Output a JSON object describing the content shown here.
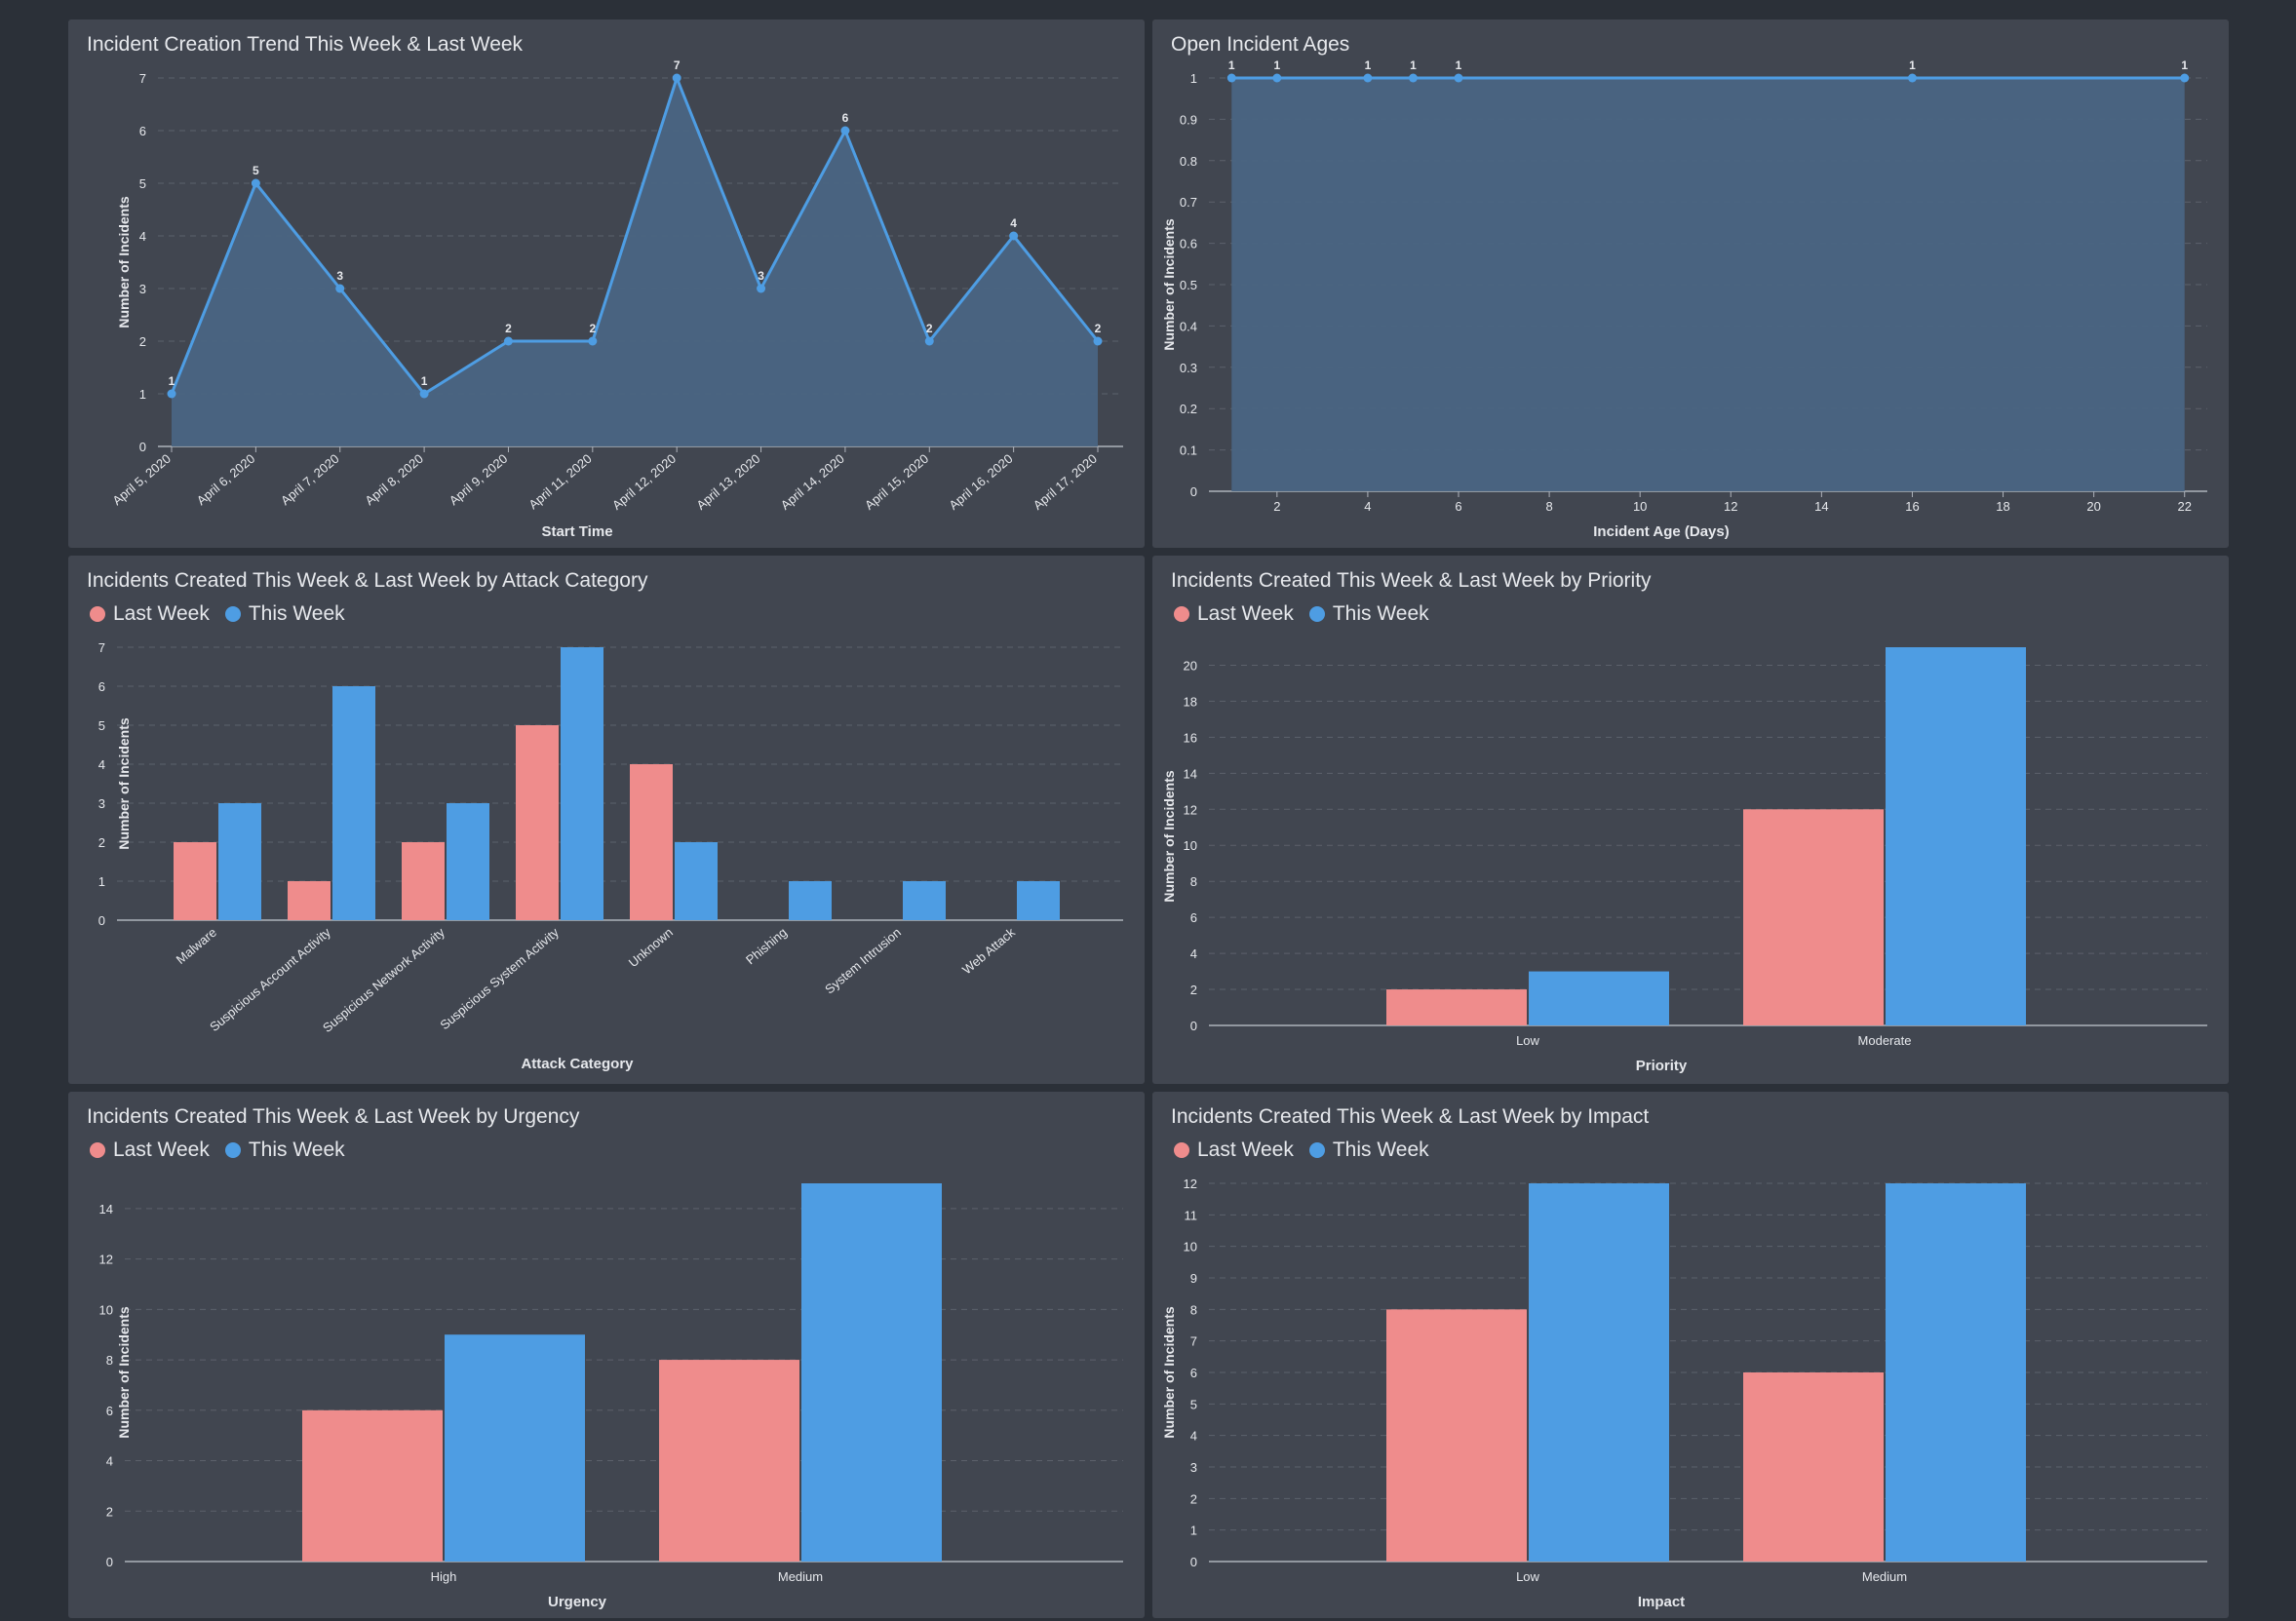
{
  "colors": {
    "last_week": "#ef8c8c",
    "this_week": "#4e9de3",
    "line": "#4e9de3",
    "area": "#4a6583",
    "text": "#e6e8ec",
    "grid": "#5c616b"
  },
  "legend": {
    "last_week": "Last Week",
    "this_week": "This Week"
  },
  "chart_data": [
    {
      "id": "trend",
      "type": "area",
      "title": "Incident Creation Trend This Week & Last Week",
      "xlabel": "Start Time",
      "ylabel": "Number of Incidents",
      "categories": [
        "April 5, 2020",
        "April 6, 2020",
        "April 7, 2020",
        "April 8, 2020",
        "April 9, 2020",
        "April 11, 2020",
        "April 12, 2020",
        "April 13, 2020",
        "April 14, 2020",
        "April 15, 2020",
        "April 16, 2020",
        "April 17, 2020"
      ],
      "values": [
        1,
        5,
        3,
        1,
        2,
        2,
        7,
        3,
        6,
        2,
        4,
        2
      ],
      "yticks": [
        0,
        1,
        2,
        3,
        4,
        5,
        6,
        7
      ],
      "ylim": [
        0,
        7
      ],
      "grid": true,
      "data_labels": true
    },
    {
      "id": "ages",
      "type": "area",
      "title": "Open Incident Ages",
      "xlabel": "Incident Age (Days)",
      "ylabel": "Number of Incidents",
      "x": [
        1,
        2,
        4,
        5,
        6,
        16,
        22
      ],
      "values": [
        1,
        1,
        1,
        1,
        1,
        1,
        1
      ],
      "xticks": [
        2,
        4,
        6,
        8,
        10,
        12,
        14,
        16,
        18,
        20,
        22
      ],
      "xlim": [
        0.5,
        22.5
      ],
      "yticks": [
        0,
        0.1,
        0.2,
        0.3,
        0.4,
        0.5,
        0.6,
        0.7,
        0.8,
        0.9,
        1
      ],
      "ylim": [
        0,
        1
      ],
      "grid": true,
      "data_labels": true
    },
    {
      "id": "attack",
      "type": "bar",
      "title": "Incidents Created This Week & Last Week by Attack Category",
      "xlabel": "Attack Category",
      "ylabel": "Number of Incidents",
      "categories": [
        "Malware",
        "Suspicious Account Activity",
        "Suspicious Network Activity",
        "Suspicious System Activity",
        "Unknown",
        "Phishing",
        "System Intrusion",
        "Web Attack"
      ],
      "series": [
        {
          "name": "Last Week",
          "values": [
            2,
            1,
            2,
            5,
            4,
            0,
            0,
            0
          ]
        },
        {
          "name": "This Week",
          "values": [
            3,
            6,
            3,
            7,
            2,
            1,
            1,
            1
          ]
        }
      ],
      "yticks": [
        0,
        1,
        2,
        3,
        4,
        5,
        6,
        7
      ],
      "ylim": [
        0,
        7
      ],
      "grid": true,
      "legend": "top-left",
      "rotate_labels": true
    },
    {
      "id": "priority",
      "type": "bar",
      "title": "Incidents Created This Week & Last Week by Priority",
      "xlabel": "Priority",
      "ylabel": "Number of Incidents",
      "categories": [
        "Low",
        "Moderate"
      ],
      "series": [
        {
          "name": "Last Week",
          "values": [
            2,
            12
          ]
        },
        {
          "name": "This Week",
          "values": [
            3,
            21
          ]
        }
      ],
      "yticks": [
        0,
        2,
        4,
        6,
        8,
        10,
        12,
        14,
        16,
        18,
        20
      ],
      "ylim": [
        0,
        21
      ],
      "grid": true,
      "legend": "top-left",
      "rotate_labels": false
    },
    {
      "id": "urgency",
      "type": "bar",
      "title": "Incidents Created This Week & Last Week by Urgency",
      "xlabel": "Urgency",
      "ylabel": "Number of Incidents",
      "categories": [
        "High",
        "Medium"
      ],
      "series": [
        {
          "name": "Last Week",
          "values": [
            6,
            8
          ]
        },
        {
          "name": "This Week",
          "values": [
            9,
            15
          ]
        }
      ],
      "yticks": [
        0,
        2,
        4,
        6,
        8,
        10,
        12,
        14
      ],
      "ylim": [
        0,
        15
      ],
      "grid": true,
      "legend": "top-left",
      "rotate_labels": false
    },
    {
      "id": "impact",
      "type": "bar",
      "title": "Incidents Created This Week & Last Week by Impact",
      "xlabel": "Impact",
      "ylabel": "Number of Incidents",
      "categories": [
        "Low",
        "Medium"
      ],
      "series": [
        {
          "name": "Last Week",
          "values": [
            8,
            6
          ]
        },
        {
          "name": "This Week",
          "values": [
            12,
            12
          ]
        }
      ],
      "yticks": [
        0,
        1,
        2,
        3,
        4,
        5,
        6,
        7,
        8,
        9,
        10,
        11,
        12
      ],
      "ylim": [
        0,
        12
      ],
      "grid": true,
      "legend": "top-left",
      "rotate_labels": false
    }
  ]
}
